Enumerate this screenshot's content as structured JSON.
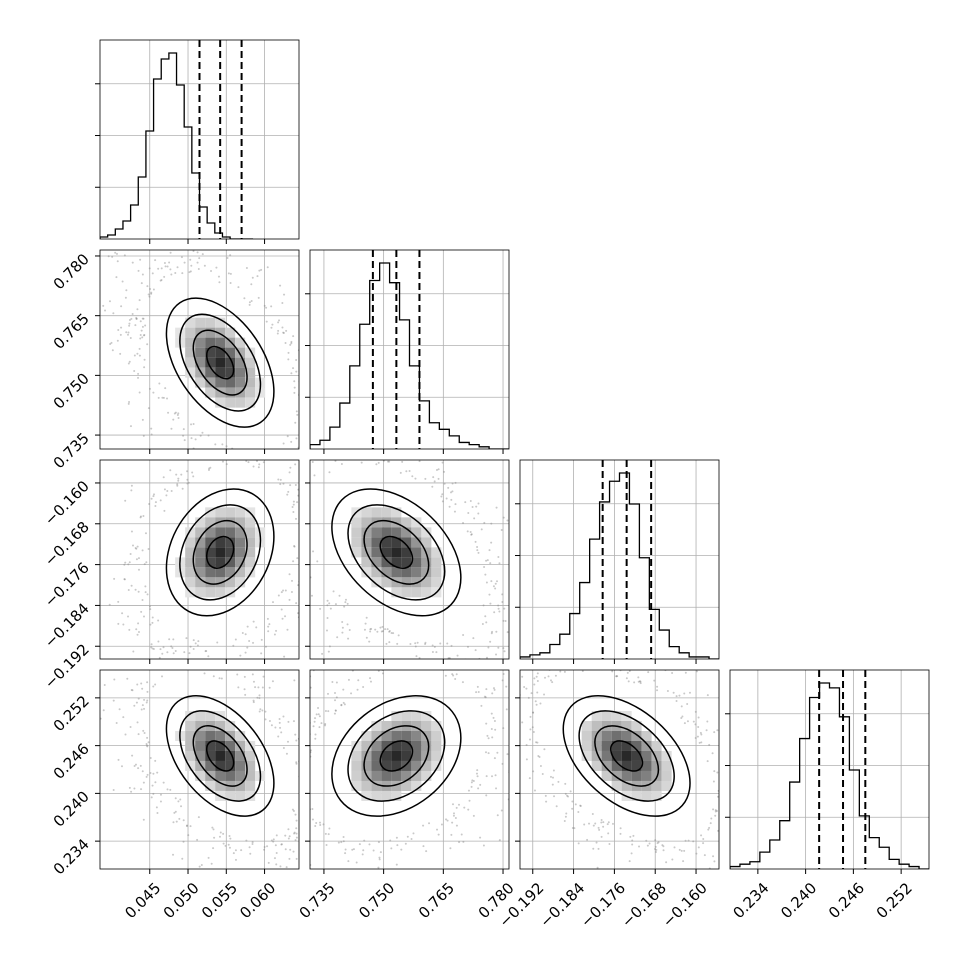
{
  "chart_data": {
    "type": "corner",
    "parameters": [
      {
        "range": [
          0.0385,
          0.0645
        ],
        "ticks": [
          "0.045",
          "0.050",
          "0.055",
          "0.060"
        ],
        "tick_values": [
          0.045,
          0.05,
          0.055,
          0.06
        ],
        "mean": 0.0542,
        "std": 0.0026,
        "quantiles": [
          0.0515,
          0.0542,
          0.057
        ],
        "histogram": {
          "start": 0.0385,
          "step": 0.001,
          "counts": [
            1,
            2,
            5,
            9,
            17,
            31,
            54,
            80,
            90,
            93,
            77,
            56,
            33,
            16,
            8,
            3,
            1,
            0,
            0,
            0
          ]
        }
      },
      {
        "range": [
          0.7315,
          0.7815
        ],
        "ticks": [
          "0.735",
          "0.750",
          "0.765",
          "0.780"
        ],
        "tick_values": [
          0.735,
          0.75,
          0.765,
          0.78
        ],
        "mean": 0.7532,
        "std": 0.006,
        "quantiles": [
          0.7473,
          0.7532,
          0.759
        ],
        "histogram": {
          "start": 0.7315,
          "step": 0.0025,
          "counts": [
            2,
            4,
            10,
            21,
            38,
            57,
            77,
            85,
            76,
            59,
            38,
            22,
            12,
            9,
            6,
            3,
            2,
            1,
            0,
            0
          ]
        }
      },
      {
        "range": [
          -0.1945,
          -0.1555
        ],
        "ticks": [
          "−0.192",
          "−0.184",
          "−0.176",
          "−0.168",
          "−0.160"
        ],
        "tick_values": [
          -0.192,
          -0.184,
          -0.176,
          -0.168,
          -0.16
        ],
        "mean": -0.1736,
        "std": 0.0046,
        "quantiles": [
          -0.1783,
          -0.1736,
          -0.1688
        ],
        "histogram": {
          "start": -0.1945,
          "step": 0.00195,
          "counts": [
            1,
            2,
            3,
            7,
            12,
            22,
            37,
            58,
            76,
            86,
            90,
            75,
            49,
            24,
            14,
            6,
            3,
            1,
            1,
            0
          ]
        }
      },
      {
        "range": [
          0.2305,
          0.2555
        ],
        "ticks": [
          "0.234",
          "0.240",
          "0.246",
          "0.252"
        ],
        "tick_values": [
          0.234,
          0.24,
          0.246,
          0.252
        ],
        "mean": 0.2447,
        "std": 0.0028,
        "quantiles": [
          0.2417,
          0.2447,
          0.2475
        ],
        "histogram": {
          "start": 0.2305,
          "step": 0.00125,
          "counts": [
            1,
            2,
            3,
            7,
            12,
            20,
            36,
            54,
            71,
            77,
            75,
            63,
            41,
            22,
            13,
            9,
            4,
            2,
            1,
            0
          ]
        }
      }
    ],
    "correlations": {
      "1-0": -0.45,
      "2-0": 0.25,
      "2-1": -0.4,
      "3-0": -0.45,
      "3-1": 0.3,
      "3-2": -0.45
    },
    "grid": true,
    "contour_levels_sigma": [
      0.5,
      1.0,
      1.5,
      2.0
    ],
    "colors": {
      "line": "#000000",
      "grid": "#b0b0b0",
      "scatter": "#888888"
    }
  }
}
